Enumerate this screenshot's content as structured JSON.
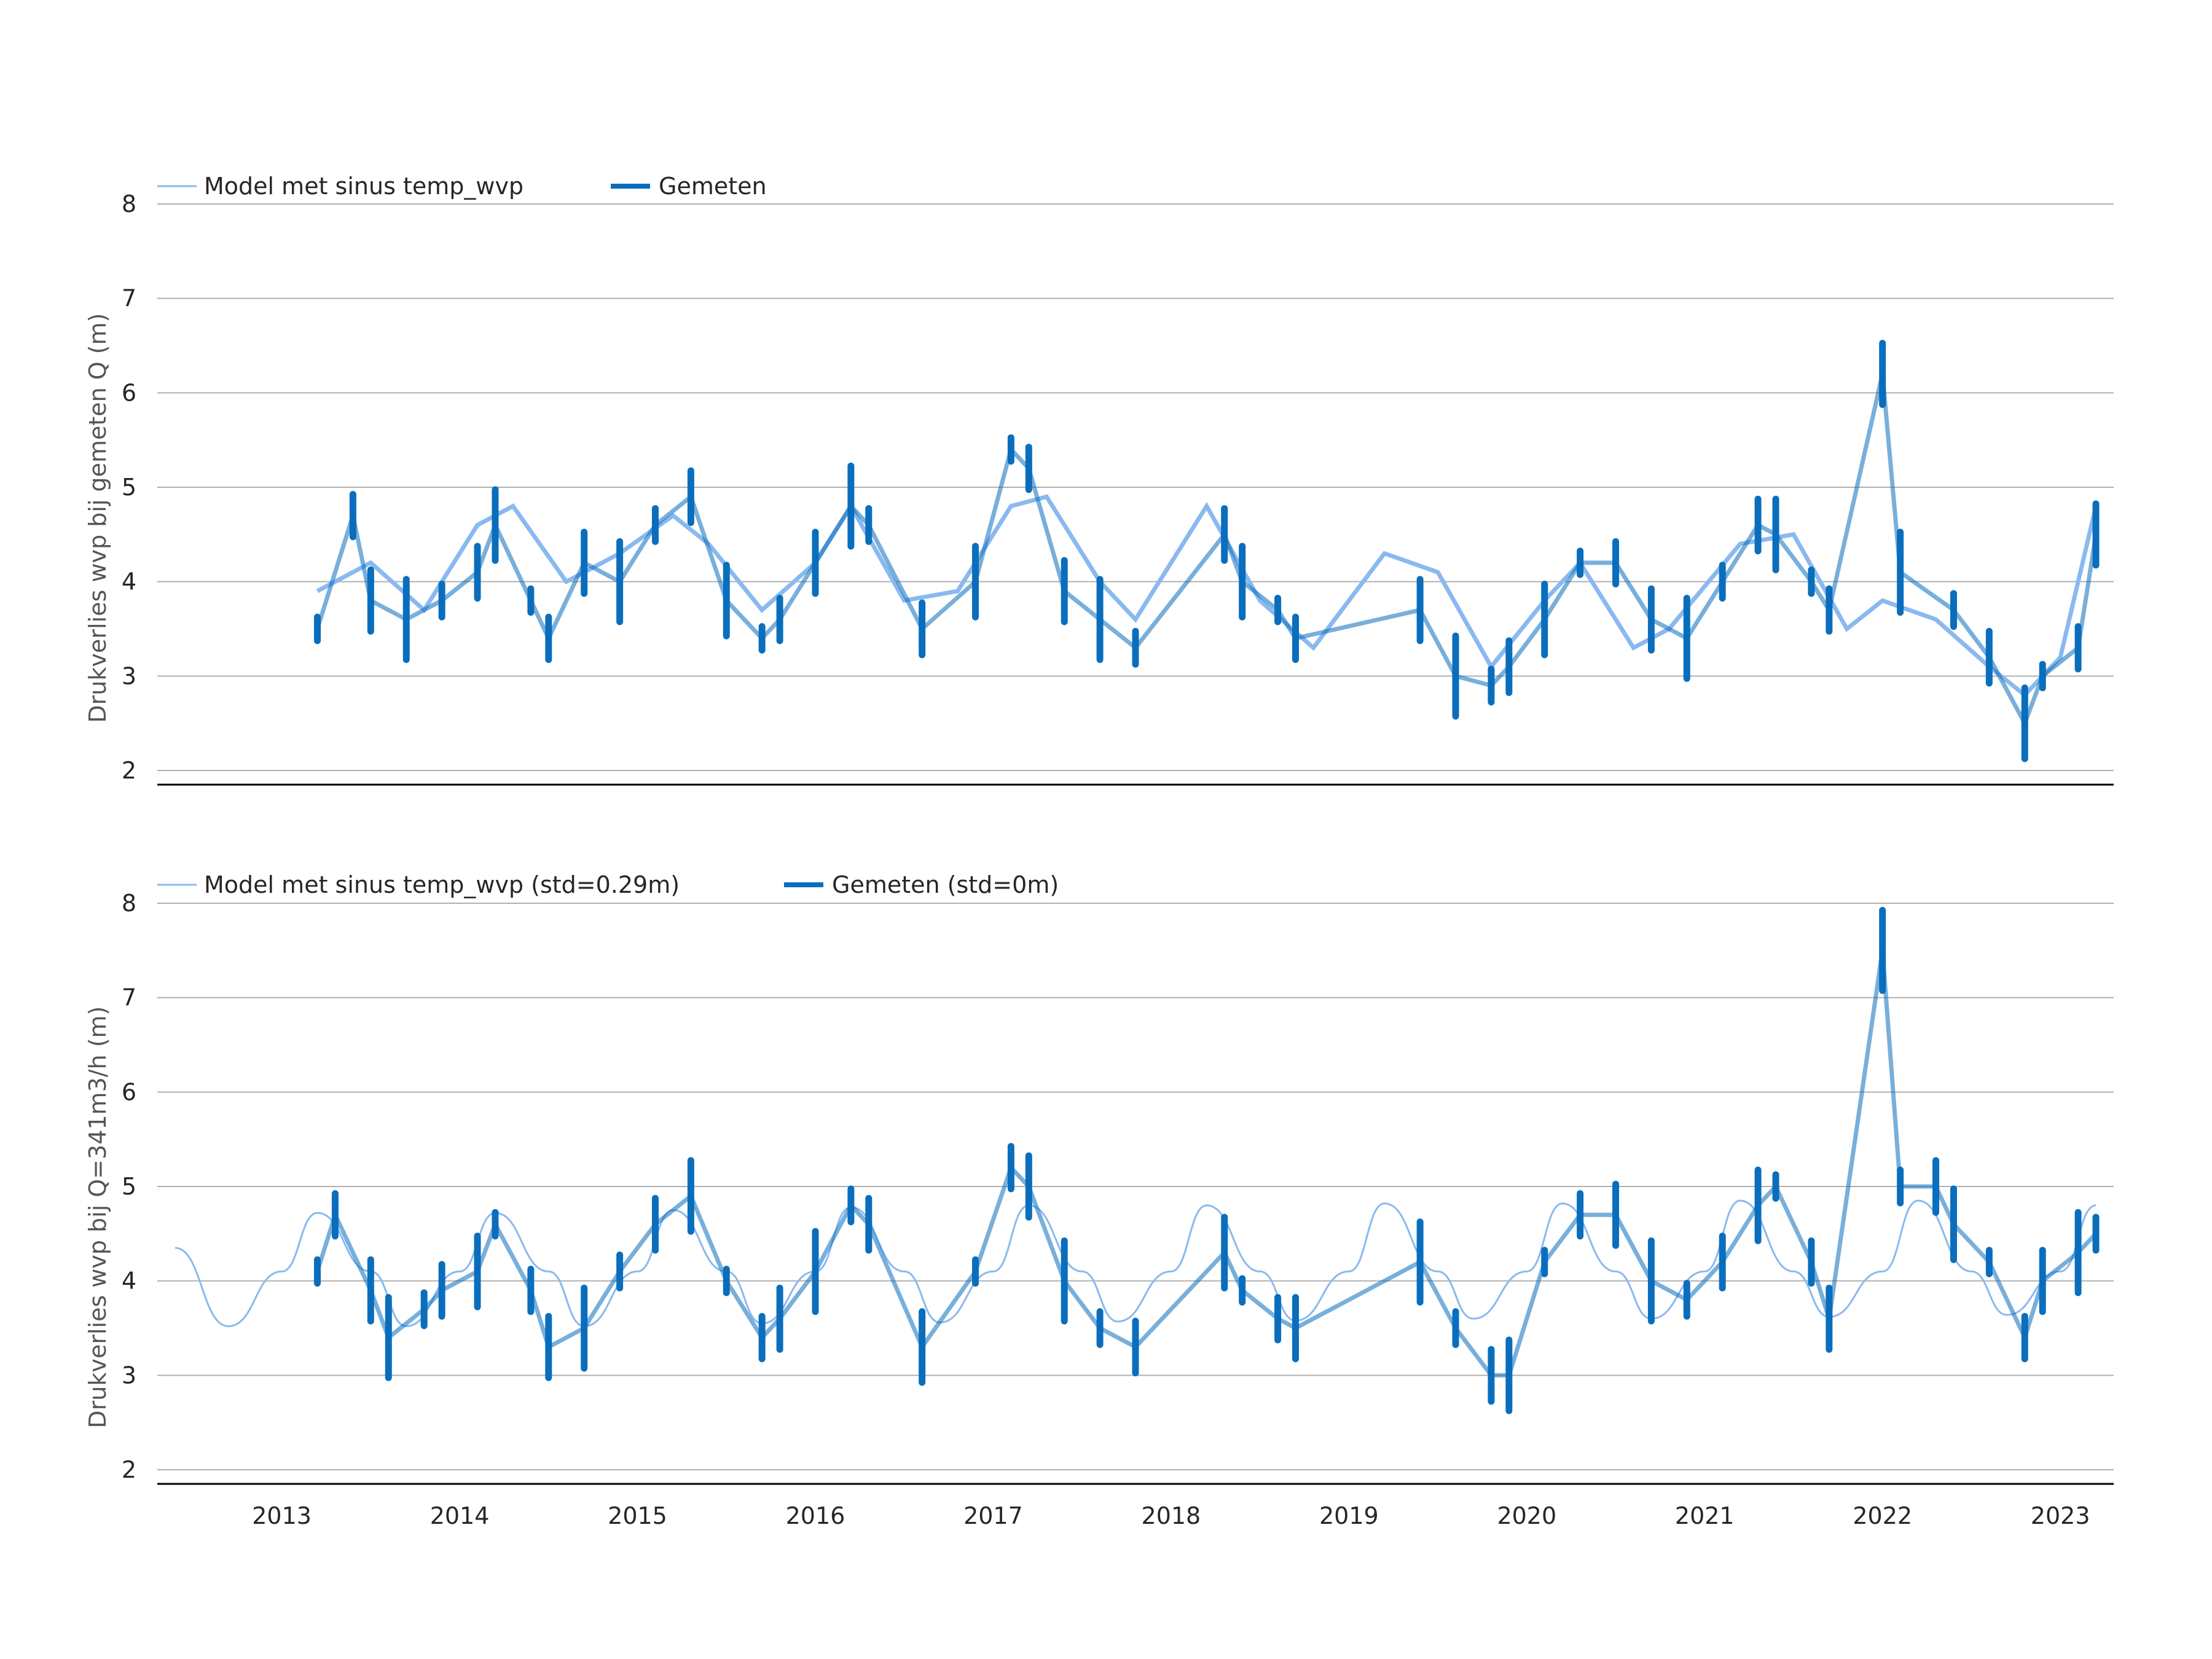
{
  "colors": {
    "model": "#8ab9f0",
    "measured": "#0a6ebd",
    "grid": "#b0b0b0",
    "axis": "#000000"
  },
  "chart_data": [
    {
      "type": "line",
      "ylabel": "Drukverlies wvp bij gemeten Q (m)",
      "ylim": [
        2,
        8
      ],
      "yticks": [
        2,
        3,
        4,
        5,
        6,
        7,
        8
      ],
      "xlim": [
        2012.3,
        2023.3
      ],
      "xticks": [
        2013,
        2014,
        2015,
        2016,
        2017,
        2018,
        2019,
        2020,
        2021,
        2022,
        2023
      ],
      "grid": "y",
      "legend_position": "top-left",
      "series": [
        {
          "name": "Model met sinus temp_wvp",
          "style": "thin",
          "color": "#8ab9f0",
          "x": [
            2013.2,
            2013.5,
            2013.8,
            2014.1,
            2014.3,
            2014.6,
            2014.9,
            2015.2,
            2015.4,
            2015.7,
            2016.0,
            2016.2,
            2016.5,
            2016.8,
            2017.1,
            2017.3,
            2017.6,
            2017.8,
            2018.2,
            2018.5,
            2018.8,
            2019.2,
            2019.5,
            2019.8,
            2020.1,
            2020.3,
            2020.6,
            2020.8,
            2021.2,
            2021.5,
            2021.8,
            2022.0,
            2022.3,
            2022.6,
            2022.8,
            2023.0,
            2023.2
          ],
          "y": [
            3.9,
            4.2,
            3.7,
            4.6,
            4.8,
            4.0,
            4.3,
            4.7,
            4.4,
            3.7,
            4.2,
            4.8,
            3.8,
            3.9,
            4.8,
            4.9,
            4.0,
            3.6,
            4.8,
            3.8,
            3.3,
            4.3,
            4.1,
            3.1,
            3.8,
            4.2,
            3.3,
            3.5,
            4.4,
            4.5,
            3.5,
            3.8,
            3.6,
            3.1,
            2.8,
            3.2,
            4.8
          ]
        },
        {
          "name": "Gemeten",
          "style": "thick",
          "color": "#0a6ebd",
          "x": [
            2013.2,
            2013.4,
            2013.5,
            2013.7,
            2013.9,
            2014.1,
            2014.2,
            2014.4,
            2014.5,
            2014.7,
            2014.9,
            2015.1,
            2015.3,
            2015.5,
            2015.7,
            2015.8,
            2016.0,
            2016.2,
            2016.3,
            2016.6,
            2016.9,
            2017.1,
            2017.2,
            2017.4,
            2017.6,
            2017.8,
            2018.3,
            2018.4,
            2018.6,
            2018.7,
            2019.4,
            2019.6,
            2019.8,
            2019.9,
            2020.1,
            2020.3,
            2020.5,
            2020.7,
            2020.9,
            2021.1,
            2021.3,
            2021.4,
            2021.6,
            2021.7,
            2022.0,
            2022.1,
            2022.4,
            2022.6,
            2022.8,
            2022.9,
            2023.1,
            2023.2
          ],
          "y": [
            3.5,
            4.7,
            3.8,
            3.6,
            3.8,
            4.1,
            4.6,
            3.8,
            3.4,
            4.2,
            4.0,
            4.6,
            4.9,
            3.8,
            3.4,
            3.6,
            4.2,
            4.8,
            4.6,
            3.5,
            4.0,
            5.4,
            5.2,
            3.9,
            3.6,
            3.3,
            4.5,
            4.0,
            3.7,
            3.4,
            3.7,
            3.0,
            2.9,
            3.1,
            3.6,
            4.2,
            4.2,
            3.6,
            3.4,
            4.0,
            4.6,
            4.5,
            4.0,
            3.7,
            6.2,
            4.1,
            3.7,
            3.2,
            2.5,
            3.0,
            3.3,
            4.5
          ]
        }
      ]
    },
    {
      "type": "line",
      "ylabel": "Drukverlies wvp bij Q=341m3/h (m)",
      "ylim": [
        2,
        8
      ],
      "yticks": [
        2,
        3,
        4,
        5,
        6,
        7,
        8
      ],
      "xlim": [
        2012.3,
        2023.3
      ],
      "xticks": [
        2013,
        2014,
        2015,
        2016,
        2017,
        2018,
        2019,
        2020,
        2021,
        2022,
        2023
      ],
      "xtick_labels": [
        "2013",
        "2014",
        "2015",
        "2016",
        "2017",
        "2018",
        "2019",
        "2020",
        "2021",
        "2022",
        "2023"
      ],
      "grid": "y",
      "legend_position": "top-left",
      "series": [
        {
          "name": "Model met sinus temp_wvp (std=0.29m)",
          "style": "thin",
          "color": "#8ab9f0",
          "x": [
            2012.4,
            2012.7,
            2013.0,
            2013.2,
            2013.5,
            2013.7,
            2014.0,
            2014.2,
            2014.5,
            2014.7,
            2015.0,
            2015.2,
            2015.5,
            2015.7,
            2016.0,
            2016.2,
            2016.5,
            2016.7,
            2017.0,
            2017.2,
            2017.5,
            2017.7,
            2018.0,
            2018.2,
            2018.5,
            2018.7,
            2019.0,
            2019.2,
            2019.5,
            2019.7,
            2020.0,
            2020.2,
            2020.5,
            2020.7,
            2021.0,
            2021.2,
            2021.5,
            2021.7,
            2022.0,
            2022.2,
            2022.5,
            2022.7,
            2023.0,
            2023.2
          ],
          "y": [
            4.35,
            3.52,
            4.1,
            4.72,
            4.1,
            3.52,
            4.1,
            4.72,
            4.1,
            3.52,
            4.1,
            4.75,
            4.1,
            3.55,
            4.1,
            4.78,
            4.1,
            3.56,
            4.1,
            4.8,
            4.1,
            3.57,
            4.1,
            4.8,
            4.1,
            3.58,
            4.1,
            4.82,
            4.1,
            3.6,
            4.1,
            4.82,
            4.1,
            3.6,
            4.1,
            4.85,
            4.1,
            3.62,
            4.1,
            4.85,
            4.1,
            3.64,
            4.1,
            4.8
          ]
        },
        {
          "name": "Gemeten (std=0m)",
          "style": "thick",
          "color": "#0a6ebd",
          "x": [
            2013.2,
            2013.3,
            2013.5,
            2013.6,
            2013.8,
            2013.9,
            2014.1,
            2014.2,
            2014.4,
            2014.5,
            2014.7,
            2014.9,
            2015.1,
            2015.3,
            2015.5,
            2015.7,
            2015.8,
            2016.0,
            2016.2,
            2016.3,
            2016.6,
            2016.9,
            2017.1,
            2017.2,
            2017.4,
            2017.6,
            2017.8,
            2018.3,
            2018.4,
            2018.6,
            2018.7,
            2019.4,
            2019.6,
            2019.8,
            2019.9,
            2020.1,
            2020.3,
            2020.5,
            2020.7,
            2020.9,
            2021.1,
            2021.3,
            2021.4,
            2021.6,
            2021.7,
            2022.0,
            2022.1,
            2022.3,
            2022.4,
            2022.6,
            2022.8,
            2022.9,
            2023.1,
            2023.2
          ],
          "y": [
            4.1,
            4.7,
            3.9,
            3.4,
            3.7,
            3.9,
            4.1,
            4.6,
            3.9,
            3.3,
            3.5,
            4.1,
            4.6,
            4.9,
            4.0,
            3.4,
            3.6,
            4.1,
            4.8,
            4.6,
            3.3,
            4.1,
            5.2,
            5.0,
            4.0,
            3.5,
            3.3,
            4.3,
            3.9,
            3.6,
            3.5,
            4.2,
            3.5,
            3.0,
            3.0,
            4.2,
            4.7,
            4.7,
            4.0,
            3.8,
            4.2,
            4.8,
            5.0,
            4.2,
            3.6,
            7.5,
            5.0,
            5.0,
            4.6,
            4.2,
            3.4,
            4.0,
            4.3,
            4.5
          ]
        }
      ]
    }
  ]
}
